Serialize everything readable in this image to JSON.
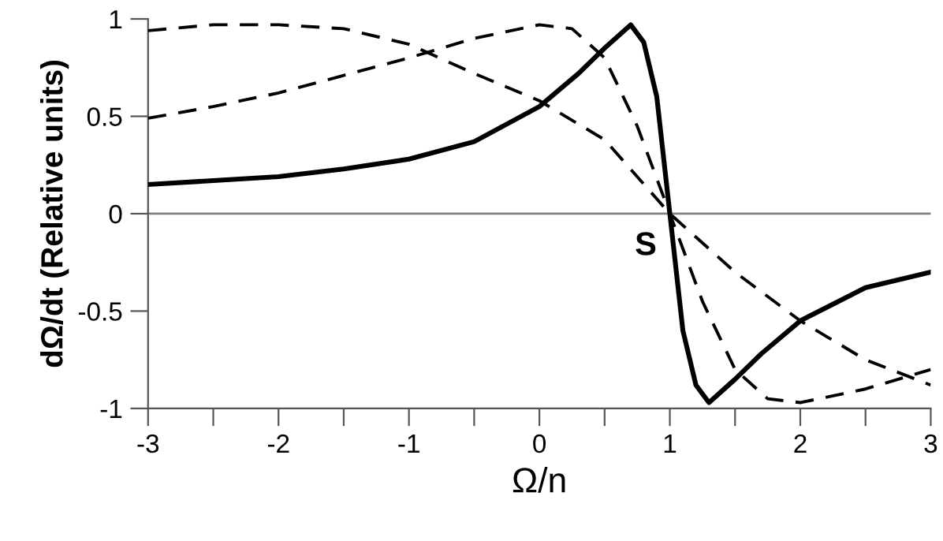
{
  "chart_data": {
    "type": "line",
    "xlabel": "Ω/n",
    "ylabel": "dΩ/dt (Relative units)",
    "xlim": [
      -3,
      3
    ],
    "ylim": [
      -1,
      1
    ],
    "xticks": [
      -3,
      {
        "value": -2.5,
        "label": null
      },
      -2,
      {
        "value": -1.5,
        "label": null
      },
      -1,
      {
        "value": -0.5,
        "label": null
      },
      0,
      {
        "value": 0.5,
        "label": null
      },
      1,
      {
        "value": 1.5,
        "label": null
      },
      2,
      {
        "value": 2.5,
        "label": null
      },
      3
    ],
    "yticks": [
      -1,
      -0.5,
      0,
      0.5,
      1
    ],
    "grid": false,
    "legend": false,
    "marker": "none",
    "ref_lines": [
      {
        "axis": "y",
        "value": 0,
        "color": "#808080",
        "line_style": "solid"
      }
    ],
    "annotations": [
      {
        "text": "S",
        "x": 1,
        "y": 0
      }
    ],
    "series": [
      {
        "color": "#000000",
        "line_style": "solid",
        "x": [
          -3,
          -2.5,
          -2,
          -1.5,
          -1,
          -0.5,
          0,
          0.3,
          0.5,
          0.7,
          0.8,
          0.9,
          1.0,
          1.1,
          1.2,
          1.3,
          1.5,
          1.7,
          2,
          2.5,
          3
        ],
        "values": [
          0.15,
          0.17,
          0.19,
          0.23,
          0.28,
          0.37,
          0.55,
          0.72,
          0.85,
          0.97,
          0.88,
          0.6,
          0,
          -0.6,
          -0.88,
          -0.97,
          -0.85,
          -0.72,
          -0.55,
          -0.38,
          -0.3
        ]
      },
      {
        "color": "#000000",
        "line_style": "dashed",
        "x": [
          -3,
          -2.5,
          -2,
          -1.5,
          -1,
          -0.5,
          0,
          0.25,
          0.5,
          0.75,
          1,
          1.25,
          1.5,
          1.75,
          2,
          2.5,
          3
        ],
        "values": [
          0.49,
          0.55,
          0.62,
          0.71,
          0.8,
          0.9,
          0.97,
          0.95,
          0.8,
          0.45,
          0,
          -0.45,
          -0.8,
          -0.95,
          -0.97,
          -0.9,
          -0.8
        ]
      },
      {
        "color": "#000000",
        "line_style": "dashed",
        "x": [
          -3,
          -2.5,
          -2,
          -1.5,
          -1,
          -0.5,
          0,
          0.5,
          1,
          1.5,
          2,
          2.5,
          3
        ],
        "values": [
          0.94,
          0.97,
          0.97,
          0.95,
          0.87,
          0.72,
          0.58,
          0.38,
          0,
          -0.3,
          -0.55,
          -0.75,
          -0.88
        ]
      }
    ]
  }
}
